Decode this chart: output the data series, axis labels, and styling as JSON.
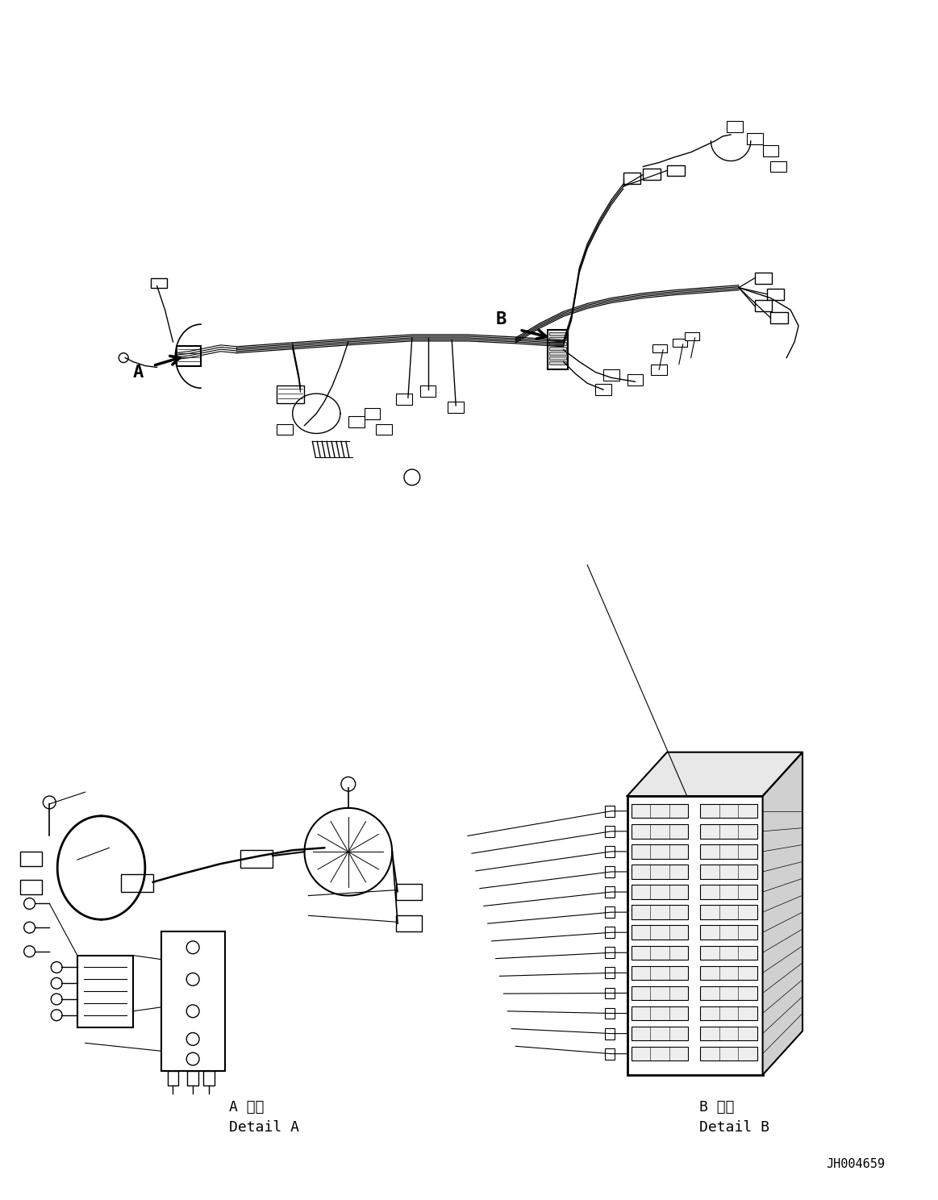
{
  "figure_width": 11.63,
  "figure_height": 14.88,
  "dpi": 100,
  "background_color": "#ffffff",
  "part_id": "JH004659",
  "label_A": "A",
  "label_B": "B",
  "detail_A_line1": "A 詳細",
  "detail_A_line2": "Detail A",
  "detail_B_line1": "B 詳細",
  "detail_B_line2": "Detail B",
  "line_color": "#000000",
  "line_width": 1.2,
  "font_size_label": 16,
  "font_size_detail": 13,
  "font_size_partid": 11
}
